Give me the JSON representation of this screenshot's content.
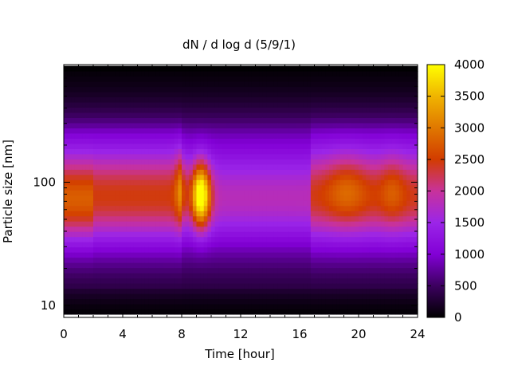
{
  "chart_data": {
    "type": "heatmap",
    "title": "dN / d log d (5/9/1)",
    "xlabel": "Time [hour]",
    "ylabel": "Particle size [nm]",
    "xlim": [
      0,
      24
    ],
    "xticks": [
      0,
      4,
      8,
      12,
      16,
      20,
      24
    ],
    "yscale": "log",
    "ylim": [
      8,
      900
    ],
    "yticks": [
      10,
      100
    ],
    "colorbar": {
      "range": [
        0,
        4000
      ],
      "ticks": [
        0,
        500,
        1000,
        1500,
        2000,
        2500,
        3000,
        3500,
        4000
      ],
      "palette": "black-purple-red-orange-yellow",
      "colors": [
        "#000000",
        "#3c005f",
        "#8200d6",
        "#9b25e8",
        "#c8329b",
        "#d23c00",
        "#e07800",
        "#f0b400",
        "#ffff00"
      ]
    },
    "grid": false,
    "legend": "colorbar-right",
    "features": [
      {
        "description": "concentration ridge near 80–100 nm, 0–8 h",
        "peak": 2300
      },
      {
        "description": "strong event near 80 nm around 9.3 h",
        "peak": 3800
      },
      {
        "description": "elevated band 60–120 nm after 16.8 h",
        "peak": 2300
      },
      {
        "description": "low background below 15 nm and above 500 nm",
        "peak": 300
      }
    ]
  }
}
